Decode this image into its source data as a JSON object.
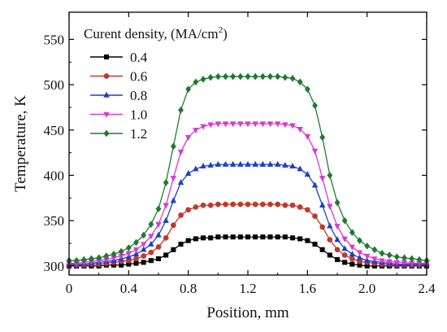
{
  "chart_data": {
    "type": "line",
    "title": "",
    "xlabel": "Position, mm",
    "ylabel": "Temperature, K",
    "xlim": [
      0,
      2.4
    ],
    "ylim": [
      290,
      580
    ],
    "xticks": [
      "0",
      "0.4",
      "0.8",
      "1.2",
      "1.6",
      "2.0",
      "2.4"
    ],
    "yticks": [
      "300",
      "350",
      "400",
      "450",
      "500",
      "550"
    ],
    "grid": false,
    "legend": {
      "title_main": "Curent density, (MA/cm",
      "title_sup": "2",
      "title_end": ")",
      "placement": "top-left"
    },
    "x": [
      0,
      0.05,
      0.1,
      0.15,
      0.2,
      0.25,
      0.3,
      0.35,
      0.4,
      0.45,
      0.5,
      0.55,
      0.6,
      0.65,
      0.7,
      0.75,
      0.8,
      0.85,
      0.9,
      0.95,
      1.0,
      1.05,
      1.1,
      1.15,
      1.2,
      1.25,
      1.3,
      1.35,
      1.4,
      1.45,
      1.5,
      1.55,
      1.6,
      1.65,
      1.7,
      1.75,
      1.8,
      1.85,
      1.9,
      1.95,
      2.0,
      2.05,
      2.1,
      2.15,
      2.2,
      2.25,
      2.3,
      2.35,
      2.4
    ],
    "series": [
      {
        "name": "0.4",
        "color": "#000000",
        "marker": "square",
        "values": [
          300,
          300,
          300,
          300,
          300,
          301,
          301,
          301,
          302,
          303,
          304,
          306,
          308,
          312,
          318,
          324,
          328,
          330,
          331,
          331,
          332,
          332,
          332,
          332,
          332,
          332,
          332,
          332,
          332,
          332,
          331,
          330,
          328,
          324,
          318,
          312,
          307,
          304,
          302,
          301,
          300,
          300,
          300,
          300,
          300,
          300,
          300,
          300,
          300
        ]
      },
      {
        "name": "0.6",
        "color": "#c0392b",
        "marker": "circle",
        "values": [
          301,
          301,
          301,
          302,
          302,
          303,
          304,
          305,
          306,
          308,
          311,
          315,
          321,
          331,
          345,
          356,
          362,
          365,
          367,
          367,
          368,
          368,
          368,
          368,
          368,
          368,
          368,
          368,
          368,
          367,
          367,
          365,
          362,
          355,
          343,
          329,
          318,
          312,
          308,
          305,
          304,
          303,
          302,
          302,
          301,
          301,
          301,
          301,
          301
        ]
      },
      {
        "name": "0.8",
        "color": "#1f3fbf",
        "marker": "triangle-up",
        "values": [
          302,
          302,
          302,
          303,
          304,
          305,
          306,
          308,
          310,
          313,
          318,
          324,
          334,
          350,
          372,
          392,
          402,
          407,
          410,
          411,
          412,
          412,
          412,
          412,
          412,
          412,
          412,
          412,
          412,
          411,
          410,
          407,
          401,
          389,
          367,
          344,
          329,
          319,
          313,
          309,
          306,
          305,
          304,
          303,
          302,
          302,
          302,
          302,
          302
        ]
      },
      {
        "name": "1.0",
        "color": "#d63ad6",
        "marker": "triangle-down",
        "values": [
          303,
          303,
          304,
          305,
          306,
          307,
          309,
          311,
          314,
          318,
          324,
          333,
          346,
          367,
          397,
          426,
          442,
          450,
          454,
          456,
          457,
          457,
          457,
          457,
          457,
          457,
          457,
          457,
          457,
          456,
          455,
          451,
          443,
          427,
          397,
          366,
          344,
          330,
          321,
          315,
          311,
          308,
          306,
          305,
          304,
          304,
          303,
          303,
          303
        ]
      },
      {
        "name": "1.2",
        "color": "#1e7a2e",
        "marker": "diamond",
        "values": [
          306,
          306,
          307,
          308,
          309,
          311,
          313,
          316,
          320,
          326,
          334,
          346,
          363,
          392,
          432,
          472,
          495,
          503,
          506,
          508,
          509,
          509,
          509,
          509,
          509,
          509,
          509,
          509,
          509,
          508,
          507,
          503,
          495,
          477,
          442,
          400,
          370,
          350,
          337,
          328,
          322,
          318,
          314,
          312,
          310,
          309,
          308,
          307,
          306
        ]
      }
    ]
  }
}
